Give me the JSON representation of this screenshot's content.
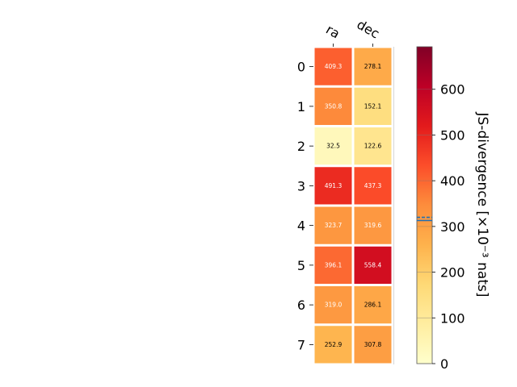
{
  "chart_data": {
    "type": "heatmap",
    "columns": [
      "ra",
      "dec"
    ],
    "rows": [
      "0",
      "1",
      "2",
      "3",
      "4",
      "5",
      "6",
      "7"
    ],
    "values": [
      [
        409.3,
        278.1
      ],
      [
        350.8,
        152.1
      ],
      [
        32.5,
        122.6
      ],
      [
        491.3,
        437.3
      ],
      [
        323.7,
        319.6
      ],
      [
        396.1,
        558.4
      ],
      [
        319.0,
        286.1
      ],
      [
        252.9,
        307.8
      ]
    ],
    "value_labels": [
      [
        "409.3",
        "278.1"
      ],
      [
        "350.8",
        "152.1"
      ],
      [
        "32.5",
        "122.6"
      ],
      [
        "491.3",
        "437.3"
      ],
      [
        "323.7",
        "319.6"
      ],
      [
        "396.1",
        "558.4"
      ],
      [
        "319.0",
        "286.1"
      ],
      [
        "252.9",
        "307.8"
      ]
    ],
    "colormap": "YlOrRd",
    "colorbar": {
      "label": "JS-divergence [×10⁻³ nats]",
      "range": [
        0,
        693
      ],
      "ticks": [
        0,
        100,
        200,
        300,
        400,
        500,
        600
      ],
      "marker_values": [
        313,
        320
      ]
    }
  }
}
